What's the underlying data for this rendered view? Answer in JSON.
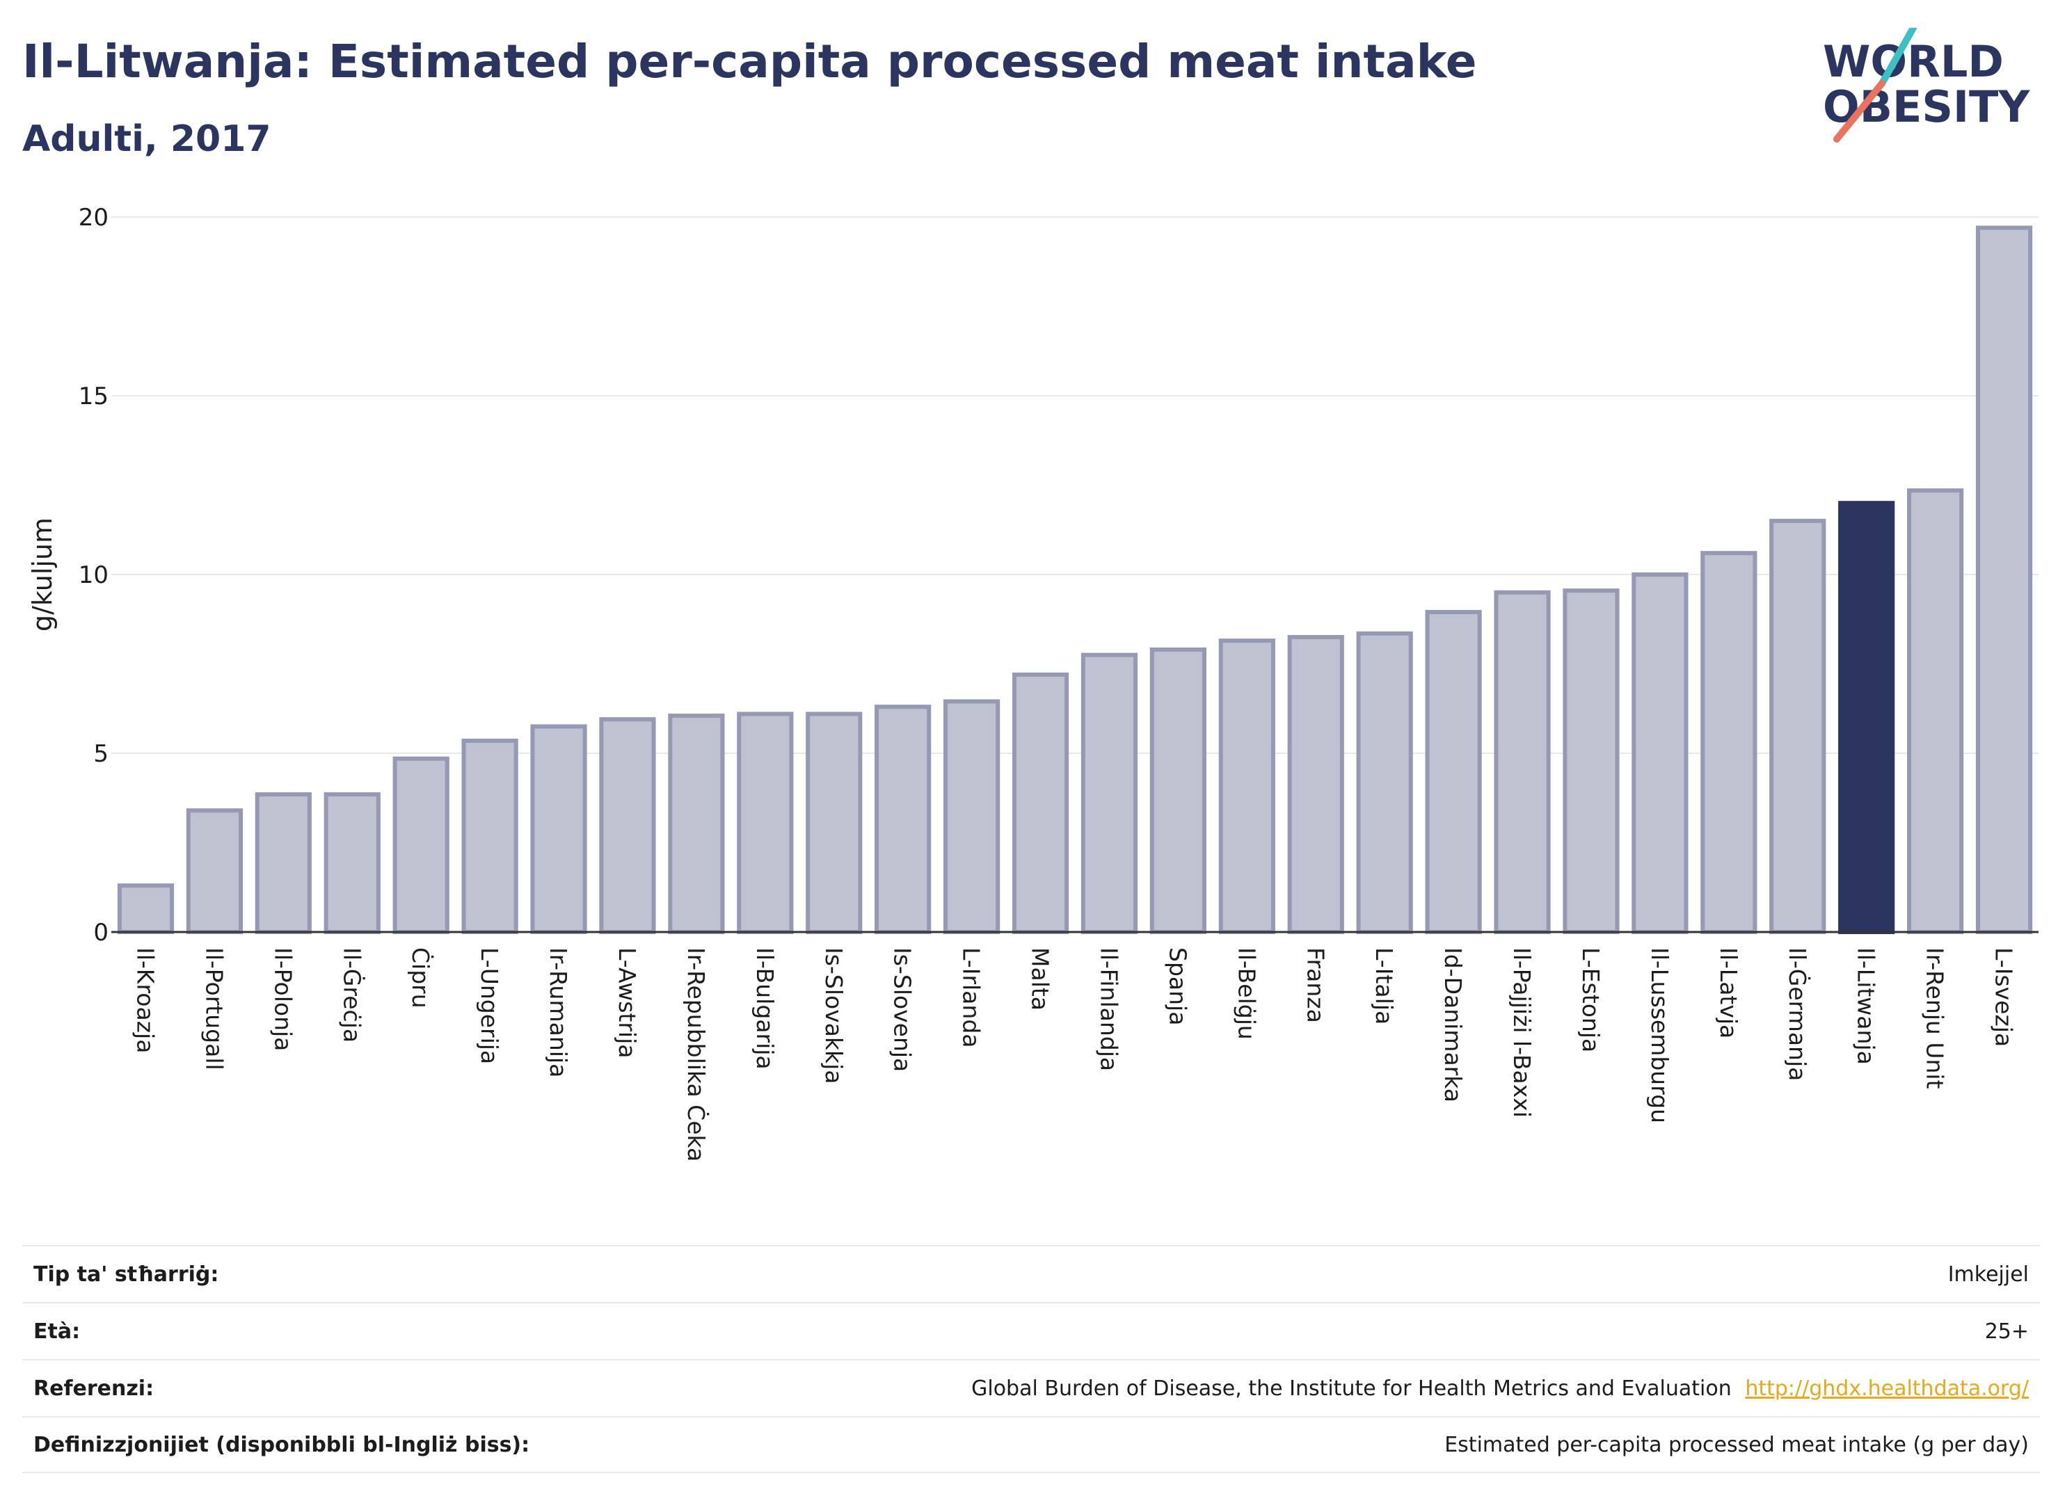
{
  "header": {
    "title": "Il-Litwanja: Estimated per-capita processed meat intake",
    "subtitle": "Adulti, 2017"
  },
  "logo": {
    "line1": "WORLD",
    "line2": "OBESITY"
  },
  "colors": {
    "bar": "#bfc2d0",
    "bar_border": "#9599b3",
    "highlight": "#2b3560",
    "grid": "#e6e8ee"
  },
  "chart_data": {
    "type": "bar",
    "ylabel": "g/kuljum",
    "ylim": [
      0,
      20
    ],
    "yticks": [
      0,
      5,
      10,
      15,
      20
    ],
    "highlight": "Il-Litwanja",
    "categories": [
      "Il-Kroazja",
      "Il-Portugall",
      "Il-Polonja",
      "Il-Ġreċja",
      "Ċipru",
      "L-Ungerija",
      "Ir-Rumanija",
      "L-Awstrija",
      "Ir-Repubblika Ċeka",
      "Il-Bulgarija",
      "Is-Slovakkja",
      "Is-Slovenja",
      "L-Irlanda",
      "Malta",
      "Il-Finlandja",
      "Spanja",
      "Il-Belġju",
      "Franza",
      "L-Italja",
      "Id-Danimarka",
      "Il-Pajjiżi l-Baxxi",
      "L-Estonja",
      "Il-Lussemburgu",
      "Il-Latvja",
      "Il-Ġermanja",
      "Il-Litwanja",
      "Ir-Renju Unit",
      "L-Isvezja"
    ],
    "values": [
      1.3,
      3.4,
      3.85,
      3.85,
      4.85,
      5.35,
      5.75,
      5.95,
      6.05,
      6.1,
      6.1,
      6.3,
      6.45,
      7.2,
      7.75,
      7.9,
      8.15,
      8.25,
      8.35,
      8.95,
      9.5,
      9.55,
      10.0,
      10.6,
      11.5,
      12.0,
      12.35,
      19.7
    ]
  },
  "meta": [
    {
      "label": "Tip ta' stħarriġ:",
      "value": "Imkejjel"
    },
    {
      "label": "Età:",
      "value": "25+"
    },
    {
      "label": "Referenzi:",
      "value": "Global Burden of Disease, the Institute for Health Metrics and Evaluation",
      "link": "http://ghdx.healthdata.org/"
    },
    {
      "label": "Definizzjonijiet (disponibbli bl-Ingliż biss):",
      "value": "Estimated per-capita processed meat intake (g per day)"
    }
  ]
}
